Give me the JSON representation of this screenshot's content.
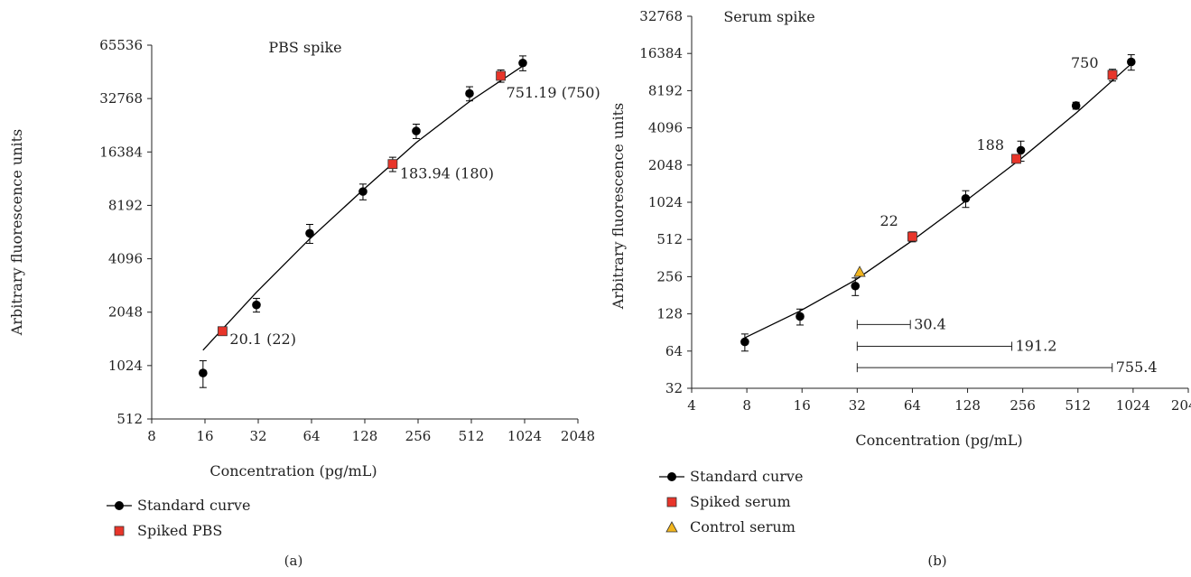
{
  "colors": {
    "standard": "#000000",
    "spiked": "#e8352a",
    "control": "#f2b51d",
    "axis": "#222222"
  },
  "chart_data": [
    {
      "type": "scatter",
      "panel_label": "(a)",
      "title": "PBS spike",
      "xlabel": "Concentration (pg/mL)",
      "ylabel": "Arbitrary fluorescence units",
      "x_scale": "log2",
      "y_scale": "log2",
      "xlim": [
        8,
        2048
      ],
      "ylim": [
        512,
        65536
      ],
      "x_ticks": [
        8,
        16,
        32,
        64,
        128,
        256,
        512,
        1024,
        2048
      ],
      "y_ticks": [
        512,
        1024,
        2048,
        4096,
        8192,
        16384,
        32768,
        65536
      ],
      "x_tick_labels": [
        "8",
        "16",
        "32",
        "64",
        "128",
        "256",
        "512",
        "1024",
        "2048"
      ],
      "y_tick_labels": [
        "512",
        "1024",
        "2048",
        "4096",
        "8192",
        "16384",
        "32768",
        "65536"
      ],
      "series": [
        {
          "name": "Standard curve",
          "marker": "circle",
          "color": "#000000",
          "points": [
            {
              "x": 15.6,
              "y": 930,
              "err": 160
            },
            {
              "x": 31.25,
              "y": 2250,
              "err": 200
            },
            {
              "x": 62.5,
              "y": 5700,
              "err": 700
            },
            {
              "x": 125,
              "y": 9800,
              "err": 1000
            },
            {
              "x": 250,
              "y": 21500,
              "err": 2000
            },
            {
              "x": 500,
              "y": 35000,
              "err": 3200
            },
            {
              "x": 1000,
              "y": 52000,
              "err": 5000
            }
          ],
          "fit_line": [
            {
              "x": 15.6,
              "y": 1250
            },
            {
              "x": 31.25,
              "y": 2650
            },
            {
              "x": 62.5,
              "y": 5300
            },
            {
              "x": 125,
              "y": 10000
            },
            {
              "x": 250,
              "y": 18500
            },
            {
              "x": 500,
              "y": 31500
            },
            {
              "x": 1000,
              "y": 50000
            }
          ]
        },
        {
          "name": "Spiked PBS",
          "marker": "square",
          "color": "#e8352a",
          "points": [
            {
              "x": 20.1,
              "y": 1600,
              "err": 0
            },
            {
              "x": 183.94,
              "y": 14000,
              "err": 1300
            },
            {
              "x": 751.19,
              "y": 44000,
              "err": 3500
            }
          ]
        }
      ],
      "annotations": [
        {
          "text": "20.1 (22)",
          "x": 20.1,
          "y": 1600
        },
        {
          "text": "183.94 (180)",
          "x": 183.94,
          "y": 14000
        },
        {
          "text": "751.19 (750)",
          "x": 751.19,
          "y": 44000
        }
      ],
      "legend": {
        "placement": "bottom-left",
        "items": [
          {
            "label": "Standard curve",
            "marker": "circle-line"
          },
          {
            "label": "Spiked PBS",
            "marker": "square"
          }
        ]
      }
    },
    {
      "type": "scatter",
      "panel_label": "(b)",
      "title": "Serum spike",
      "xlabel": "Concentration (pg/mL)",
      "ylabel": "Arbitrary fluorescence units",
      "x_scale": "log2",
      "y_scale": "log2",
      "xlim": [
        4,
        2048
      ],
      "ylim": [
        32,
        32768
      ],
      "x_ticks": [
        4,
        8,
        16,
        32,
        64,
        128,
        256,
        512,
        1024,
        2048
      ],
      "y_ticks": [
        32,
        64,
        128,
        256,
        512,
        1024,
        2048,
        4096,
        8192,
        16384,
        32768
      ],
      "x_tick_labels": [
        "4",
        "8",
        "16",
        "32",
        "64",
        "128",
        "256",
        "512",
        "1024",
        "2048"
      ],
      "y_tick_labels": [
        "32",
        "64",
        "128",
        "256",
        "512",
        "1024",
        "2048",
        "4096",
        "8192",
        "16384",
        "32768"
      ],
      "series": [
        {
          "name": "Standard curve",
          "marker": "circle",
          "color": "#000000",
          "points": [
            {
              "x": 7.8,
              "y": 76,
              "err": 12
            },
            {
              "x": 15.6,
              "y": 122,
              "err": 18
            },
            {
              "x": 31.25,
              "y": 215,
              "err": 35
            },
            {
              "x": 125,
              "y": 1100,
              "err": 170
            },
            {
              "x": 250,
              "y": 2700,
              "err": 500
            },
            {
              "x": 500,
              "y": 6200,
              "err": 400
            },
            {
              "x": 1000,
              "y": 14000,
              "err": 2000
            }
          ],
          "fit_line": [
            {
              "x": 7.8,
              "y": 82
            },
            {
              "x": 15.6,
              "y": 135
            },
            {
              "x": 31.25,
              "y": 240
            },
            {
              "x": 62.5,
              "y": 490
            },
            {
              "x": 125,
              "y": 1050
            },
            {
              "x": 250,
              "y": 2300
            },
            {
              "x": 500,
              "y": 5400
            },
            {
              "x": 1000,
              "y": 13500
            }
          ]
        },
        {
          "name": "Spiked serum",
          "marker": "square",
          "color": "#e8352a",
          "points": [
            {
              "x": 64,
              "y": 540,
              "err": 50
            },
            {
              "x": 236,
              "y": 2300,
              "err": 0
            },
            {
              "x": 790,
              "y": 11000,
              "err": 1200
            }
          ]
        },
        {
          "name": "Control serum",
          "marker": "triangle",
          "color": "#f2b51d",
          "points": [
            {
              "x": 33,
              "y": 280,
              "err": 0
            }
          ]
        }
      ],
      "annotations": [
        {
          "text": "22",
          "x": 64,
          "y": 540
        },
        {
          "text": "188",
          "x": 236,
          "y": 2300
        },
        {
          "text": "750",
          "x": 790,
          "y": 11000
        }
      ],
      "ranges": [
        {
          "label": "30.4",
          "from": 32,
          "to": 62.4,
          "y": 105
        },
        {
          "label": "191.2",
          "from": 32,
          "to": 223.2,
          "y": 70
        },
        {
          "label": "755.4",
          "from": 32,
          "to": 787.4,
          "y": 47
        }
      ],
      "legend": {
        "placement": "bottom-left",
        "items": [
          {
            "label": "Standard curve",
            "marker": "circle-line"
          },
          {
            "label": "Spiked serum",
            "marker": "square"
          },
          {
            "label": "Control serum",
            "marker": "triangle"
          }
        ]
      }
    }
  ]
}
